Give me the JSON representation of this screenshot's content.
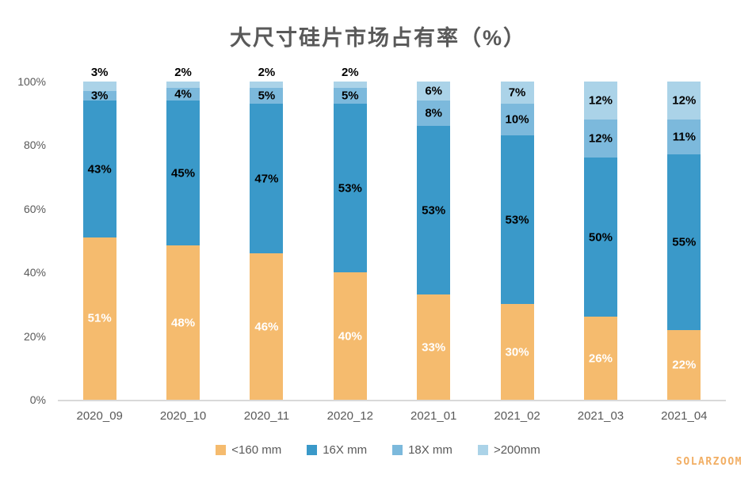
{
  "title": "大尺寸硅片市场占有率（%）",
  "watermark": "SOLARZOOM",
  "colors": {
    "series_lt160": "#f5bb6e",
    "series_16x": "#3a99c9",
    "series_18x": "#7cb9dc",
    "series_gt200": "#abd3e8",
    "title_text": "#595959",
    "axis_text": "#595959",
    "axis_line": "#d9d9d9",
    "inside_label_dark": "#000000",
    "inside_label_light": "#ffffff",
    "watermark_text": "#f2ae63"
  },
  "chart_data": {
    "type": "bar",
    "stacked": true,
    "title": "大尺寸硅片市场占有率（%）",
    "xlabel": "",
    "ylabel": "",
    "ylim": [
      0,
      100
    ],
    "grid": false,
    "legend_position": "bottom",
    "categories": [
      "2020_09",
      "2020_10",
      "2020_11",
      "2020_12",
      "2021_01",
      "2021_02",
      "2021_03",
      "2021_04"
    ],
    "yticks": [
      {
        "value": 0,
        "label": "0%"
      },
      {
        "value": 20,
        "label": "20%"
      },
      {
        "value": 40,
        "label": "40%"
      },
      {
        "value": 60,
        "label": "60%"
      },
      {
        "value": 80,
        "label": "80%"
      },
      {
        "value": 100,
        "label": "100%"
      }
    ],
    "series": [
      {
        "name": "<160 mm",
        "color": "#f5bb6e",
        "label_color": "#ffffff",
        "values": [
          51,
          48,
          46,
          40,
          33,
          30,
          26,
          22
        ],
        "label_placement": [
          "inside",
          "inside",
          "inside",
          "inside",
          "inside",
          "inside",
          "inside",
          "inside"
        ]
      },
      {
        "name": "16X mm",
        "color": "#3a99c9",
        "label_color": "#000000",
        "values": [
          43,
          45,
          47,
          53,
          53,
          53,
          50,
          55
        ],
        "label_placement": [
          "inside",
          "inside",
          "inside",
          "inside",
          "inside",
          "inside",
          "inside",
          "inside"
        ]
      },
      {
        "name": "18X mm",
        "color": "#7cb9dc",
        "label_color": "#000000",
        "values": [
          3,
          4,
          5,
          5,
          8,
          10,
          12,
          11
        ],
        "label_placement": [
          "inside",
          "inside",
          "inside",
          "inside",
          "inside",
          "inside",
          "inside",
          "inside"
        ]
      },
      {
        "name": ">200mm",
        "color": "#abd3e8",
        "label_color": "#000000",
        "values": [
          3,
          2,
          2,
          2,
          6,
          7,
          12,
          12
        ],
        "label_placement": [
          "above",
          "above",
          "above",
          "above",
          "inside",
          "inside",
          "inside",
          "inside"
        ]
      }
    ]
  }
}
